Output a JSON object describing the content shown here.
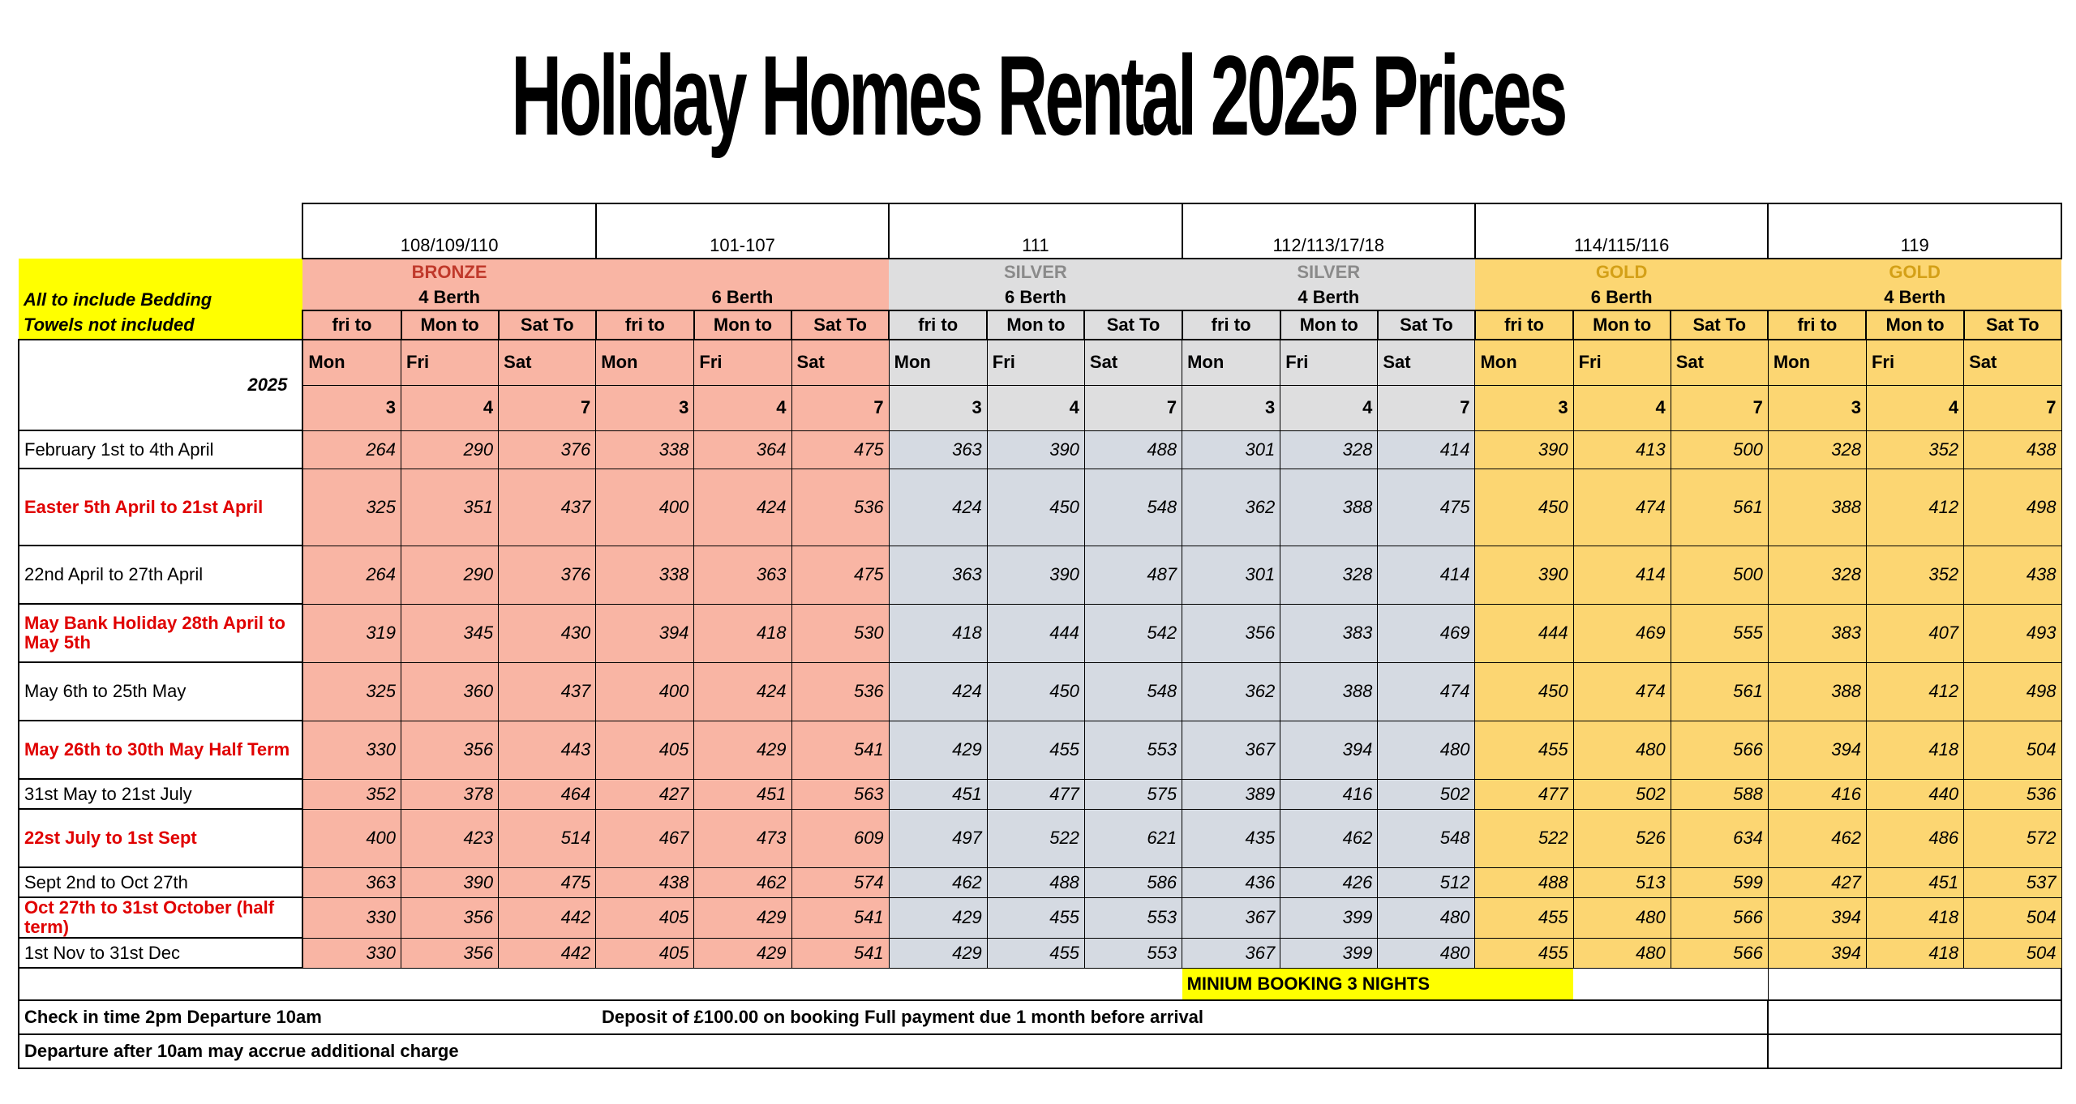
{
  "title": "Holiday Homes Rental 2025 Prices",
  "colors": {
    "bronze": "#f9b5a4",
    "silver": "#dededf",
    "silver_values": "#d5dae2",
    "gold": "#fcd672",
    "highlight": "#ffff00",
    "red_text": "#e00000"
  },
  "notes": {
    "line1": "All to include Bedding",
    "line2": "Towels not included"
  },
  "year": "2025",
  "units": [
    {
      "name": "108/109/110",
      "tier": "BRONZE",
      "berth": "4 Berth"
    },
    {
      "name": "101-107",
      "tier": "",
      "berth": "6 Berth"
    },
    {
      "name": "111",
      "tier": "SILVER",
      "berth": "6 Berth"
    },
    {
      "name": "112/113/17/18",
      "tier": "SILVER",
      "berth": "4 Berth"
    },
    {
      "name": "114/115/116",
      "tier": "GOLD",
      "berth": "6 Berth"
    },
    {
      "name": "119",
      "tier": "GOLD",
      "berth": "4 Berth"
    }
  ],
  "day_headers": [
    "fri to",
    "Mon to",
    "Sat To"
  ],
  "day_subs": [
    "Mon",
    "Fri",
    "Sat"
  ],
  "nights": [
    "3",
    "4",
    "7"
  ],
  "rows": [
    {
      "label": "February 1st  to 4th April",
      "highlight": false,
      "values": [
        264,
        290,
        376,
        338,
        364,
        475,
        363,
        390,
        488,
        301,
        328,
        414,
        390,
        413,
        500,
        328,
        352,
        438
      ]
    },
    {
      "label": "Easter 5th April to 21st April",
      "highlight": true,
      "values": [
        325,
        351,
        437,
        400,
        424,
        536,
        424,
        450,
        548,
        362,
        388,
        475,
        450,
        474,
        561,
        388,
        412,
        498
      ]
    },
    {
      "label": "22nd  April to 27th April",
      "highlight": false,
      "values": [
        264,
        290,
        376,
        338,
        363,
        475,
        363,
        390,
        487,
        301,
        328,
        414,
        390,
        414,
        500,
        328,
        352,
        438
      ]
    },
    {
      "label": "May Bank Holiday 28th April  to May 5th",
      "highlight": true,
      "values": [
        319,
        345,
        430,
        394,
        418,
        530,
        418,
        444,
        542,
        356,
        383,
        469,
        444,
        469,
        555,
        383,
        407,
        493
      ]
    },
    {
      "label": "May 6th to 25th May",
      "highlight": false,
      "values": [
        325,
        360,
        437,
        400,
        424,
        536,
        424,
        450,
        548,
        362,
        388,
        474,
        450,
        474,
        561,
        388,
        412,
        498
      ]
    },
    {
      "label": "May 26th to 30th May     Half Term",
      "highlight": true,
      "values": [
        330,
        356,
        443,
        405,
        429,
        541,
        429,
        455,
        553,
        367,
        394,
        480,
        455,
        480,
        566,
        394,
        418,
        504
      ]
    },
    {
      "label": "31st May to 21st July",
      "highlight": false,
      "values": [
        352,
        378,
        464,
        427,
        451,
        563,
        451,
        477,
        575,
        389,
        416,
        502,
        477,
        502,
        588,
        416,
        440,
        536
      ]
    },
    {
      "label": "22st July to 1st  Sept",
      "highlight": true,
      "values": [
        400,
        423,
        514,
        467,
        473,
        609,
        497,
        522,
        621,
        435,
        462,
        548,
        522,
        526,
        634,
        462,
        486,
        572
      ]
    },
    {
      "label": "Sept 2nd  to Oct 27th",
      "highlight": false,
      "values": [
        363,
        390,
        475,
        438,
        462,
        574,
        462,
        488,
        586,
        436,
        426,
        512,
        488,
        513,
        599,
        427,
        451,
        537
      ]
    },
    {
      "label": "Oct 27th to 31st October (half term)",
      "highlight": true,
      "values": [
        330,
        356,
        442,
        405,
        429,
        541,
        429,
        455,
        553,
        367,
        399,
        480,
        455,
        480,
        566,
        394,
        418,
        504
      ]
    },
    {
      "label": "1st Nov to 31st Dec",
      "highlight": false,
      "values": [
        330,
        356,
        442,
        405,
        429,
        541,
        429,
        455,
        553,
        367,
        399,
        480,
        455,
        480,
        566,
        394,
        418,
        504
      ]
    }
  ],
  "minimum_booking": "MINIUM BOOKING 3 NIGHTS",
  "footer": {
    "checkin": "Check in time 2pm   Departure 10am",
    "deposit": "Deposit of £100.00 on booking  Full payment due 1 month before arrival",
    "departure": "Departure after 10am may accrue additional charge"
  }
}
